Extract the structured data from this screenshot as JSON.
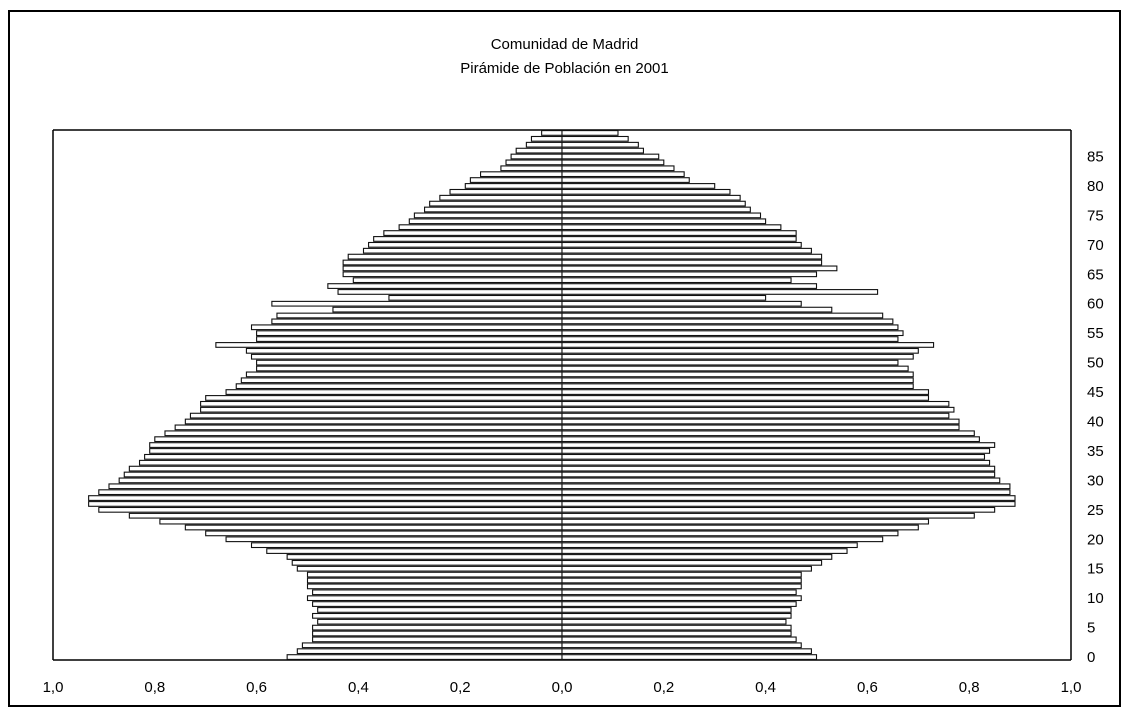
{
  "chart_data": {
    "type": "bar",
    "subtype": "population-pyramid",
    "title": "Comunidad  de Madrid",
    "subtitle": "Pirámide de Población en 2001",
    "xlabel": "",
    "ylabel": "",
    "x_ticks": [
      "1,0",
      "0,8",
      "0,6",
      "0,4",
      "0,2",
      "0,0",
      "0,2",
      "0,4",
      "0,6",
      "0,8",
      "1,0"
    ],
    "xlim": [
      -1.0,
      1.0
    ],
    "y_ticks": [
      "0",
      "5",
      "10",
      "15",
      "20",
      "25",
      "30",
      "35",
      "40",
      "45",
      "50",
      "55",
      "60",
      "65",
      "70",
      "75",
      "80",
      "85"
    ],
    "ylim": [
      0,
      90
    ],
    "grid": false,
    "ages": [
      0,
      1,
      2,
      3,
      4,
      5,
      6,
      7,
      8,
      9,
      10,
      11,
      12,
      13,
      14,
      15,
      16,
      17,
      18,
      19,
      20,
      21,
      22,
      23,
      24,
      25,
      26,
      27,
      28,
      29,
      30,
      31,
      32,
      33,
      34,
      35,
      36,
      37,
      38,
      39,
      40,
      41,
      42,
      43,
      44,
      45,
      46,
      47,
      48,
      49,
      50,
      51,
      52,
      53,
      54,
      55,
      56,
      57,
      58,
      59,
      60,
      61,
      62,
      63,
      64,
      65,
      66,
      67,
      68,
      69,
      70,
      71,
      72,
      73,
      74,
      75,
      76,
      77,
      78,
      79,
      80,
      81,
      82,
      83,
      84,
      85,
      86,
      87,
      88,
      89
    ],
    "series": [
      {
        "values": [
          0.54,
          0.52,
          0.51,
          0.49,
          0.49,
          0.49,
          0.48,
          0.49,
          0.48,
          0.49,
          0.5,
          0.49,
          0.5,
          0.5,
          0.5,
          0.52,
          0.53,
          0.54,
          0.58,
          0.61,
          0.66,
          0.7,
          0.74,
          0.79,
          0.85,
          0.91,
          0.93,
          0.93,
          0.91,
          0.89,
          0.87,
          0.86,
          0.85,
          0.83,
          0.82,
          0.81,
          0.81,
          0.8,
          0.78,
          0.76,
          0.74,
          0.73,
          0.71,
          0.71,
          0.7,
          0.66,
          0.64,
          0.63,
          0.62,
          0.6,
          0.6,
          0.61,
          0.62,
          0.68,
          0.6,
          0.6,
          0.61,
          0.57,
          0.56,
          0.45,
          0.57,
          0.34,
          0.44,
          0.46,
          0.41,
          0.43,
          0.43,
          0.43,
          0.42,
          0.39,
          0.38,
          0.37,
          0.35,
          0.32,
          0.3,
          0.29,
          0.27,
          0.26,
          0.24,
          0.22,
          0.19,
          0.18,
          0.16,
          0.12,
          0.11,
          0.1,
          0.09,
          0.07,
          0.06,
          0.04
        ]
      },
      {
        "values": [
          0.5,
          0.49,
          0.47,
          0.46,
          0.45,
          0.45,
          0.44,
          0.45,
          0.45,
          0.46,
          0.47,
          0.46,
          0.47,
          0.47,
          0.47,
          0.49,
          0.51,
          0.53,
          0.56,
          0.58,
          0.63,
          0.66,
          0.7,
          0.72,
          0.81,
          0.85,
          0.89,
          0.89,
          0.88,
          0.88,
          0.86,
          0.85,
          0.85,
          0.84,
          0.83,
          0.84,
          0.85,
          0.82,
          0.81,
          0.78,
          0.78,
          0.76,
          0.77,
          0.76,
          0.72,
          0.72,
          0.69,
          0.69,
          0.69,
          0.68,
          0.66,
          0.69,
          0.7,
          0.73,
          0.66,
          0.67,
          0.66,
          0.65,
          0.63,
          0.53,
          0.47,
          0.4,
          0.62,
          0.5,
          0.45,
          0.5,
          0.54,
          0.51,
          0.51,
          0.49,
          0.47,
          0.46,
          0.46,
          0.43,
          0.4,
          0.39,
          0.37,
          0.36,
          0.35,
          0.33,
          0.3,
          0.25,
          0.24,
          0.22,
          0.2,
          0.19,
          0.16,
          0.15,
          0.13,
          0.11
        ]
      }
    ]
  }
}
